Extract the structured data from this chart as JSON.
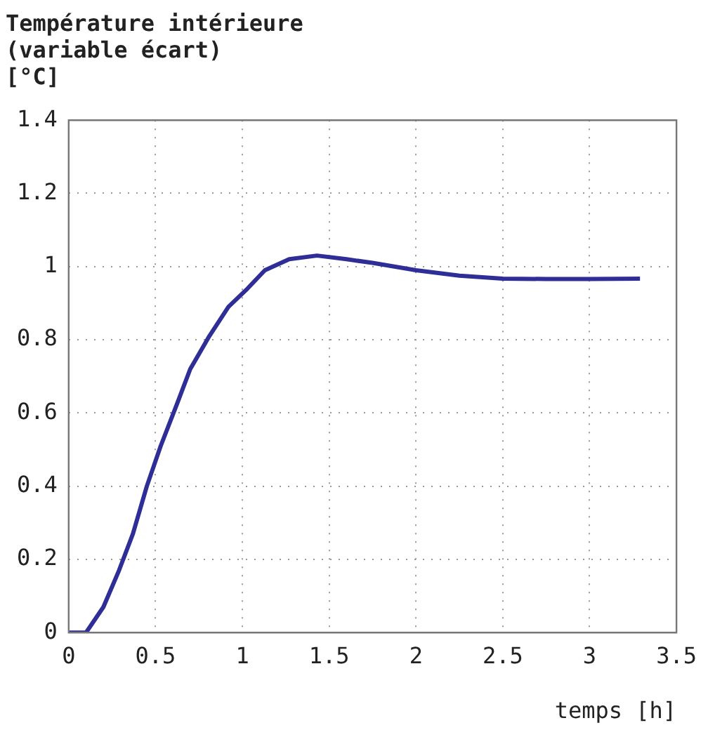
{
  "chart_data": {
    "type": "line",
    "title": "Température intérieure\n(variable écart)\n[°C]",
    "xlabel": "temps [h]",
    "series": [
      {
        "color": "#2e2e96",
        "x": [
          0,
          0.1,
          0.2,
          0.29,
          0.37,
          0.45,
          0.53,
          0.62,
          0.7,
          0.81,
          0.92,
          1.03,
          1.13,
          1.27,
          1.43,
          1.6,
          1.75,
          2.0,
          2.25,
          2.5,
          2.75,
          3.0,
          3.29
        ],
        "values": [
          0,
          0,
          0.07,
          0.17,
          0.27,
          0.4,
          0.51,
          0.62,
          0.72,
          0.81,
          0.89,
          0.94,
          0.99,
          1.02,
          1.03,
          1.02,
          1.01,
          0.99,
          0.975,
          0.967,
          0.966,
          0.966,
          0.967
        ]
      }
    ],
    "xlim": [
      0,
      3.5
    ],
    "xticks": [
      0,
      0.5,
      1,
      1.5,
      2,
      2.5,
      3,
      3.5
    ],
    "ylim": [
      0,
      1.4
    ],
    "yticks": [
      0,
      0.2,
      0.4,
      0.6,
      0.8,
      1,
      1.2,
      1.4
    ],
    "grid": true,
    "legend": false,
    "line_style": "solid",
    "marker": "none"
  }
}
